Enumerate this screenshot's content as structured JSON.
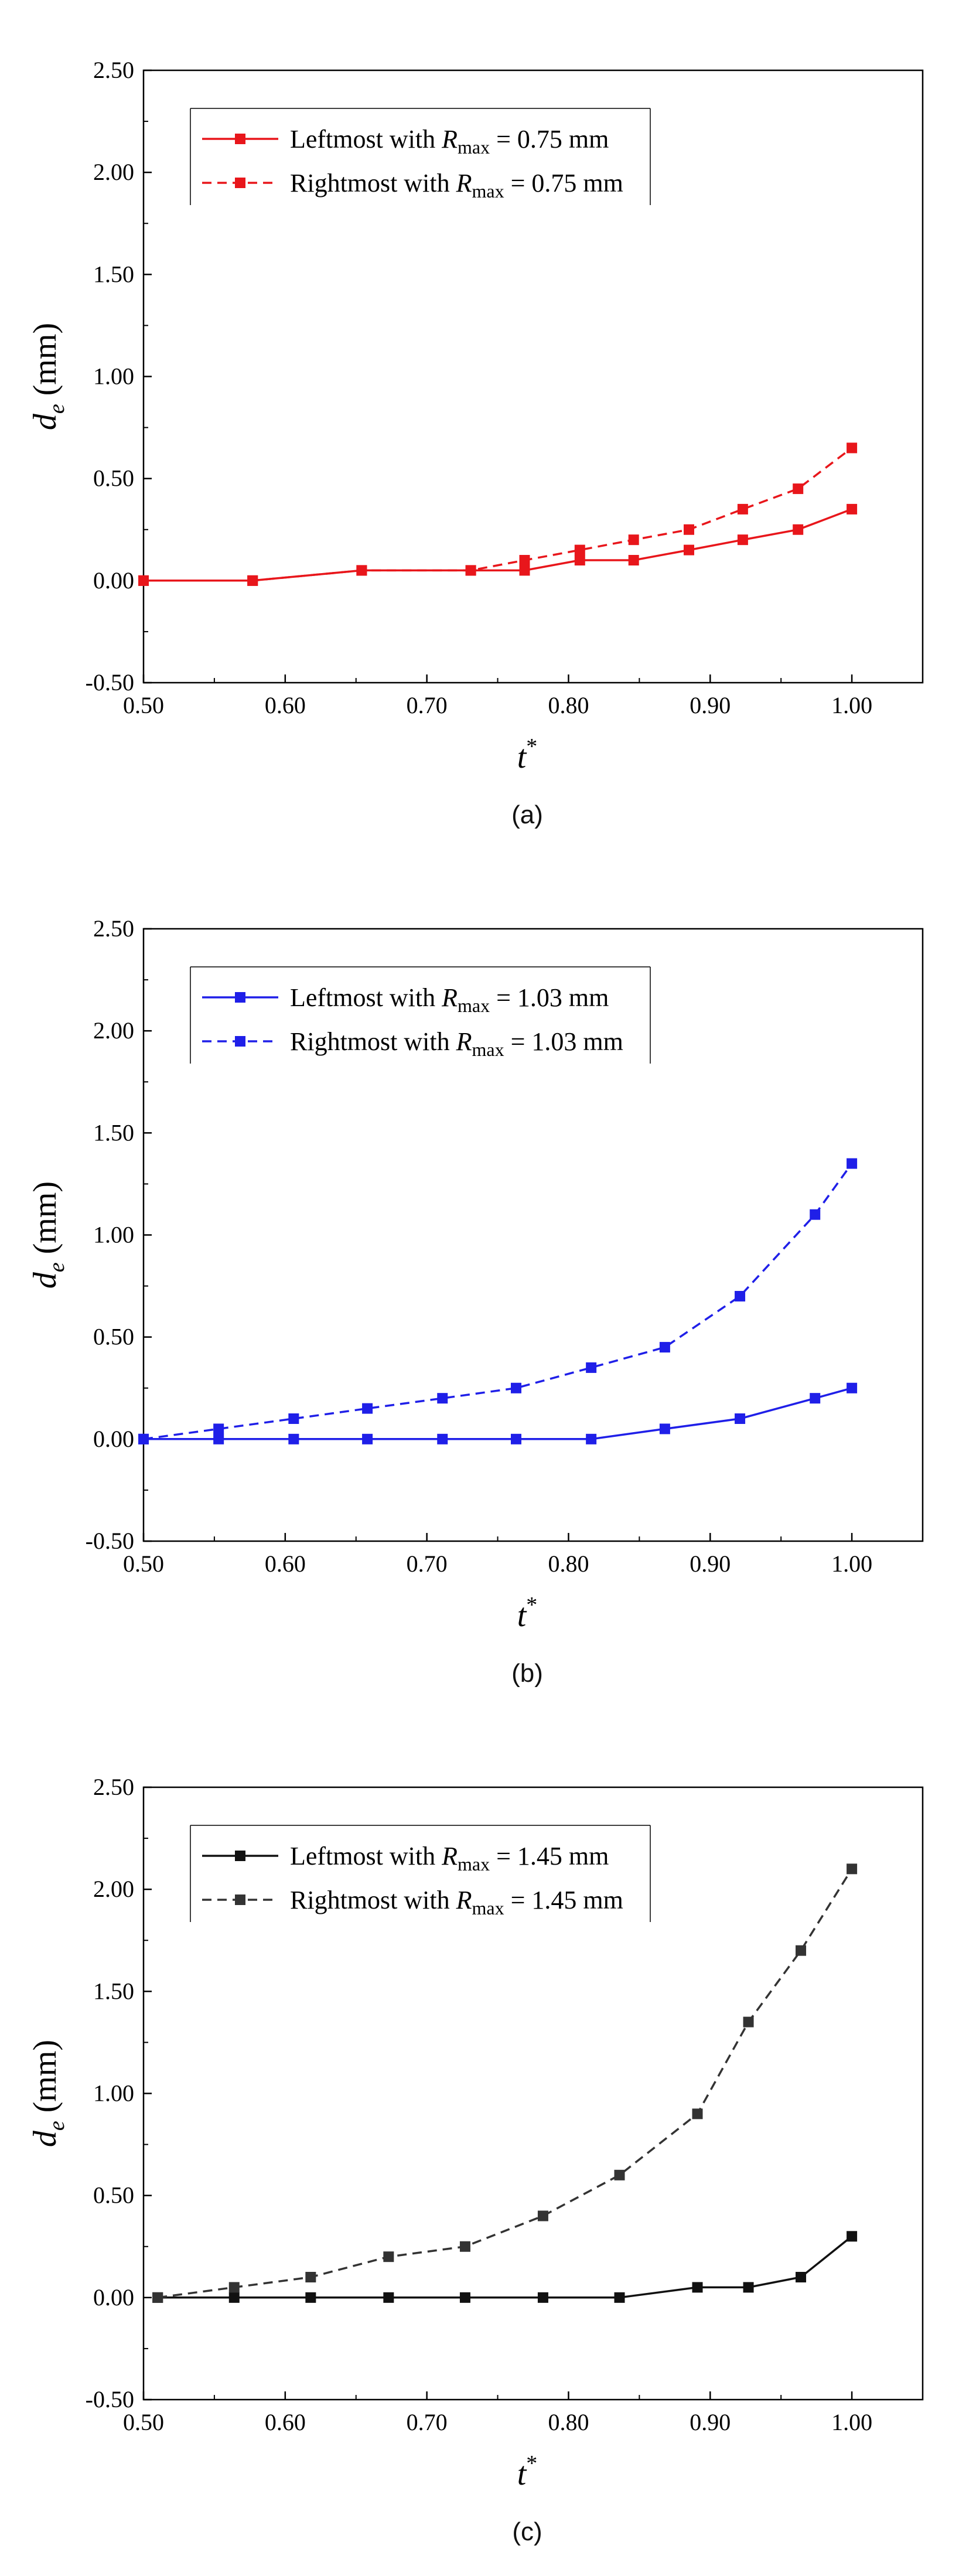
{
  "chart_data": [
    {
      "type": "line",
      "panel_caption": "(a)",
      "xlabel": "t",
      "xlabel_sup": "*",
      "ylabel": "d",
      "ylabel_sub": "e",
      "ylabel_unit": " (mm)",
      "xlim": [
        0.5,
        1.05
      ],
      "ylim": [
        -0.5,
        2.5
      ],
      "xticks": [
        "0.50",
        "0.60",
        "0.70",
        "0.80",
        "0.90",
        "1.00"
      ],
      "yticks": [
        "-0.50",
        "0.00",
        "0.50",
        "1.00",
        "1.50",
        "2.00",
        "2.50"
      ],
      "series": [
        {
          "name": "Leftmost with",
          "rmax_label": "R",
          "rmax_sub": "max",
          "rmax_value": " = 0.75 mm",
          "color": "#e8161b",
          "style": "solid",
          "x": [
            0.5,
            0.577,
            0.654,
            0.731,
            0.769,
            0.808,
            0.846,
            0.885,
            0.923,
            0.962,
            1.0
          ],
          "y": [
            0.0,
            0.0,
            0.05,
            0.05,
            0.05,
            0.1,
            0.1,
            0.15,
            0.2,
            0.25,
            0.35
          ]
        },
        {
          "name": "Rightmost with",
          "rmax_label": "R",
          "rmax_sub": "max",
          "rmax_value": " = 0.75 mm",
          "color": "#e8161b",
          "style": "dashed",
          "x": [
            0.5,
            0.577,
            0.654,
            0.731,
            0.769,
            0.808,
            0.846,
            0.885,
            0.923,
            0.962,
            1.0
          ],
          "y": [
            0.0,
            0.0,
            0.05,
            0.05,
            0.1,
            0.15,
            0.2,
            0.25,
            0.35,
            0.45,
            0.65
          ]
        }
      ]
    },
    {
      "type": "line",
      "panel_caption": "(b)",
      "xlabel": "t",
      "xlabel_sup": "*",
      "ylabel": "d",
      "ylabel_sub": "e",
      "ylabel_unit": " (mm)",
      "xlim": [
        0.5,
        1.05
      ],
      "ylim": [
        -0.5,
        2.5
      ],
      "xticks": [
        "0.50",
        "0.60",
        "0.70",
        "0.80",
        "0.90",
        "1.00"
      ],
      "yticks": [
        "-0.50",
        "0.00",
        "0.50",
        "1.00",
        "1.50",
        "2.00",
        "2.50"
      ],
      "series": [
        {
          "name": "Leftmost with",
          "rmax_label": "R",
          "rmax_sub": "max",
          "rmax_value": " = 1.03 mm",
          "color": "#1f1fe8",
          "style": "solid",
          "x": [
            0.5,
            0.553,
            0.606,
            0.658,
            0.711,
            0.763,
            0.816,
            0.868,
            0.921,
            0.974,
            1.0
          ],
          "y": [
            0.0,
            0.0,
            0.0,
            0.0,
            0.0,
            0.0,
            0.0,
            0.05,
            0.1,
            0.2,
            0.25
          ]
        },
        {
          "name": "Rightmost with",
          "rmax_label": "R",
          "rmax_sub": "max",
          "rmax_value": " = 1.03 mm",
          "color": "#1f1fe8",
          "style": "dashed",
          "x": [
            0.5,
            0.553,
            0.606,
            0.658,
            0.711,
            0.763,
            0.816,
            0.868,
            0.921,
            0.974,
            1.0
          ],
          "y": [
            0.0,
            0.05,
            0.1,
            0.15,
            0.2,
            0.25,
            0.35,
            0.45,
            0.7,
            1.1,
            1.35
          ]
        }
      ]
    },
    {
      "type": "line",
      "panel_caption": "(c)",
      "xlabel": "t",
      "xlabel_sup": "*",
      "ylabel": "d",
      "ylabel_sub": "e",
      "ylabel_unit": " (mm)",
      "xlim": [
        0.5,
        1.05
      ],
      "ylim": [
        -0.5,
        2.5
      ],
      "xticks": [
        "0.50",
        "0.60",
        "0.70",
        "0.80",
        "0.90",
        "1.00"
      ],
      "yticks": [
        "-0.50",
        "0.00",
        "0.50",
        "1.00",
        "1.50",
        "2.00",
        "2.50"
      ],
      "series": [
        {
          "name": "Leftmost with",
          "rmax_label": "R",
          "rmax_sub": "max",
          "rmax_value": " = 1.45 mm",
          "color": "#111111",
          "style": "solid",
          "x": [
            0.51,
            0.564,
            0.618,
            0.673,
            0.727,
            0.782,
            0.836,
            0.891,
            0.927,
            0.964,
            1.0
          ],
          "y": [
            0.0,
            0.0,
            0.0,
            0.0,
            0.0,
            0.0,
            0.0,
            0.05,
            0.05,
            0.1,
            0.3
          ]
        },
        {
          "name": "Rightmost with",
          "rmax_label": "R",
          "rmax_sub": "max",
          "rmax_value": " = 1.45 mm",
          "color": "#333333",
          "style": "dashed",
          "x": [
            0.51,
            0.564,
            0.618,
            0.673,
            0.727,
            0.782,
            0.836,
            0.891,
            0.927,
            0.964,
            1.0
          ],
          "y": [
            0.0,
            0.05,
            0.1,
            0.2,
            0.25,
            0.4,
            0.6,
            0.9,
            1.35,
            1.7,
            2.1
          ]
        }
      ]
    }
  ]
}
